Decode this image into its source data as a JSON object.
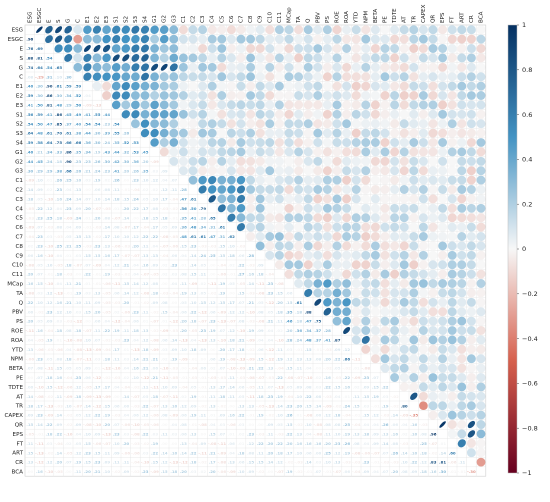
{
  "chart_data": {
    "type": "heatmap",
    "variables": [
      "ESG",
      "ESGC",
      "E",
      "S",
      "G",
      "C",
      "E1",
      "E2",
      "E3",
      "S1",
      "S2",
      "S3",
      "S4",
      "G1",
      "G2",
      "G3",
      "C1",
      "C2",
      "C3",
      "C4",
      "C5",
      "C6",
      "C7",
      "C8",
      "C9",
      "C10",
      "C11",
      "MCap",
      "TA",
      "Q",
      "PBV",
      "PS",
      "ROE",
      "ROA",
      "YTD",
      "NPM",
      "BETA",
      "PE",
      "TDTE",
      "AT",
      "TR",
      "CAPEX",
      "QR",
      "EPS",
      "FT",
      "ART",
      "CR",
      "BCA"
    ],
    "row_labels": [
      "ESG",
      "ESGC",
      "E",
      "S",
      "G",
      "C",
      "E1",
      "E2",
      "E3",
      "S1",
      "S2",
      "S3",
      "S4",
      "G1",
      "G2",
      "G3",
      "C1",
      "C2",
      "C3",
      "C4",
      "C5",
      "C6",
      "C7",
      "C8",
      "C9",
      "C10",
      "C11",
      "MCap",
      "TA",
      "Q",
      "PBV",
      "PS",
      "ROE",
      "ROA",
      "YTD",
      "NPM",
      "BETA",
      "PE",
      "TDTE",
      "AT",
      "TR",
      "CAPEX",
      "QR",
      "EPS",
      "FT",
      "ART",
      "CR",
      "BCA"
    ],
    "column_labels": [
      "ESG",
      "ESGC",
      "E",
      "S",
      "G",
      "C",
      "E1",
      "E2",
      "E3",
      "S1",
      "S2",
      "S3",
      "S4",
      "G1",
      "G2",
      "G3",
      "C1",
      "C2",
      "C3",
      "C4",
      "C5",
      "C6",
      "C7",
      "C8",
      "C9",
      "C10",
      "C11",
      "MCap",
      "TA",
      "Q",
      "PBV",
      "PS",
      "ROE",
      "ROA",
      "YTD",
      "NPM",
      "BETA",
      "PE",
      "TDTE",
      "AT",
      "TR",
      "CAPEX",
      "QR",
      "EPS",
      "FT",
      "ART",
      "CR",
      "BCA"
    ],
    "lower_triangle": "numbers",
    "upper_triangle": "ellipses",
    "colorbar": {
      "ticks": [
        1,
        0.8,
        0.6,
        0.4,
        0.2,
        0,
        -0.2,
        -0.4,
        -0.6,
        -0.8,
        -1
      ],
      "tick_labels": [
        "1",
        "0.8",
        "0.6",
        "0.4",
        "0.2",
        "0",
        "−0.2",
        "−0.4",
        "−0.6",
        "−0.8",
        "−1"
      ],
      "range": [
        -1,
        1
      ],
      "negative_color": "#67001f",
      "neutral_color": "#f7f7f7",
      "positive_color": "#053061"
    },
    "blocks": [
      {
        "rows": [
          2,
          3,
          4
        ],
        "cols": [
          0,
          1
        ],
        "value": 0.76
      },
      {
        "rows": [
          2,
          4
        ],
        "cols": [
          2,
          3
        ],
        "value": 0.5
      },
      {
        "rows": [
          5,
          5
        ],
        "cols": [
          0,
          4
        ],
        "value": 0.15
      },
      {
        "rows": [
          6,
          8
        ],
        "cols": [
          0,
          5
        ],
        "value": 0.45
      },
      {
        "rows": [
          9,
          12
        ],
        "cols": [
          0,
          5
        ],
        "value": 0.5
      },
      {
        "rows": [
          9,
          12
        ],
        "cols": [
          6,
          11
        ],
        "value": 0.4
      },
      {
        "rows": [
          13,
          15
        ],
        "cols": [
          0,
          12
        ],
        "value": 0.35
      },
      {
        "rows": [
          16,
          26
        ],
        "cols": [
          0,
          15
        ],
        "value": 0.08
      },
      {
        "rows": [
          17,
          22
        ],
        "cols": [
          16,
          21
        ],
        "value": 0.45
      },
      {
        "rows": [
          23,
          26
        ],
        "cols": [
          16,
          25
        ],
        "value": 0.1
      },
      {
        "rows": [
          27,
          47
        ],
        "cols": [
          0,
          26
        ],
        "value": 0.05
      },
      {
        "rows": [
          29,
          33
        ],
        "cols": [
          27,
          32
        ],
        "value": 0.3
      },
      {
        "rows": [
          34,
          38
        ],
        "cols": [
          27,
          37
        ],
        "value": 0.05
      },
      {
        "rows": [
          39,
          47
        ],
        "cols": [
          27,
          46
        ],
        "value": 0.08
      }
    ],
    "strong_pairs": [
      {
        "row": "ESGC",
        "col": "ESG",
        "value": 0.96
      },
      {
        "row": "E",
        "col": "ESG",
        "value": 0.76
      },
      {
        "row": "S",
        "col": "ESG",
        "value": 0.88
      },
      {
        "row": "S",
        "col": "ESGC",
        "value": 0.81
      },
      {
        "row": "G",
        "col": "ESG",
        "value": 0.74
      },
      {
        "row": "G",
        "col": "ESGC",
        "value": 0.64
      },
      {
        "row": "C",
        "col": "ESGC",
        "value": -0.29
      },
      {
        "row": "E1",
        "col": "E",
        "value": 0.9
      },
      {
        "row": "E2",
        "col": "E",
        "value": 0.86
      },
      {
        "row": "E3",
        "col": "E",
        "value": 0.81
      },
      {
        "row": "S1",
        "col": "S",
        "value": 0.86
      },
      {
        "row": "S2",
        "col": "S",
        "value": 0.85
      },
      {
        "row": "S3",
        "col": "S",
        "value": 0.7
      },
      {
        "row": "S4",
        "col": "S",
        "value": 0.75
      },
      {
        "row": "G1",
        "col": "G",
        "value": 0.86
      },
      {
        "row": "G2",
        "col": "G",
        "value": 0.9
      },
      {
        "row": "G3",
        "col": "G",
        "value": 0.66
      },
      {
        "row": "C3",
        "col": "C2",
        "value": 0.61
      },
      {
        "row": "C4",
        "col": "C3",
        "value": 0.79
      },
      {
        "row": "C5",
        "col": "C4",
        "value": 0.65
      },
      {
        "row": "C7",
        "col": "C6",
        "value": 0.62
      },
      {
        "row": "Q",
        "col": "TA",
        "value": 0.61
      },
      {
        "row": "PBV",
        "col": "Q",
        "value": 0.88
      },
      {
        "row": "PS",
        "col": "PBV",
        "value": 0.75
      },
      {
        "row": "ROA",
        "col": "ROE",
        "value": 0.87
      },
      {
        "row": "NPM",
        "col": "ROA",
        "value": 0.66
      },
      {
        "row": "TR",
        "col": "AT",
        "value": 0.8
      },
      {
        "row": "CAPEX",
        "col": "TR",
        "value": -0.35
      },
      {
        "row": "EPS",
        "col": "QR",
        "value": 0.96
      },
      {
        "row": "CR",
        "col": "QR",
        "value": 0.83
      },
      {
        "row": "CR",
        "col": "EPS",
        "value": 0.81
      },
      {
        "row": "ART",
        "col": "FT",
        "value": 0.6
      },
      {
        "row": "BCA",
        "col": "CR",
        "value": -0.3
      },
      {
        "row": "BCA",
        "col": "EPS",
        "value": 0.3
      }
    ]
  }
}
